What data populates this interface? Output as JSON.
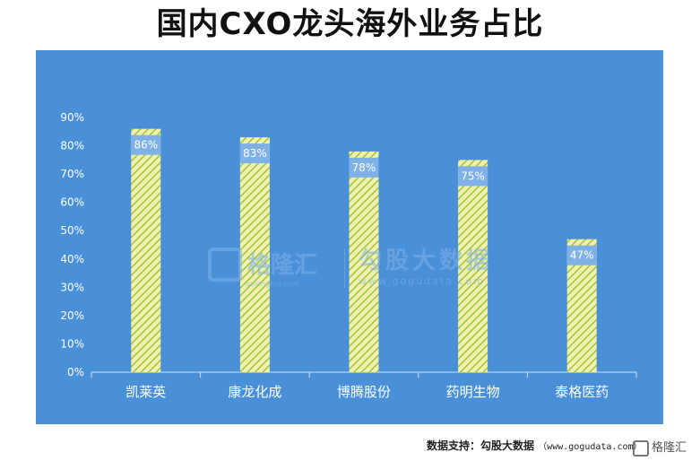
{
  "title": "国内CXO龙头海外业务占比",
  "chart_data": {
    "type": "bar",
    "categories": [
      "凯莱英",
      "康龙化成",
      "博腾股份",
      "药明生物",
      "泰格医药"
    ],
    "values": [
      86,
      83,
      78,
      75,
      47
    ],
    "data_labels": [
      "86%",
      "83%",
      "78%",
      "75%",
      "47%"
    ],
    "yticks": [
      "0%",
      "10%",
      "20%",
      "30%",
      "40%",
      "50%",
      "60%",
      "70%",
      "80%",
      "90%"
    ],
    "ylim": [
      0,
      90
    ],
    "grid": false,
    "bar_fill": "#f2efb0",
    "bar_hatch": "#9cc83a",
    "label_box": "#7fb0e6",
    "panel_color": "#4a90d9"
  },
  "watermark": {
    "logo_text": "格隆汇",
    "logo_sub": "gelonghui.com",
    "right_title": "勾股大数据",
    "right_url": "www.gogudata.com"
  },
  "footer": {
    "source": "数据支持：勾股大数据",
    "url": "（www.gogudata.com）",
    "corner": "格隆汇"
  }
}
